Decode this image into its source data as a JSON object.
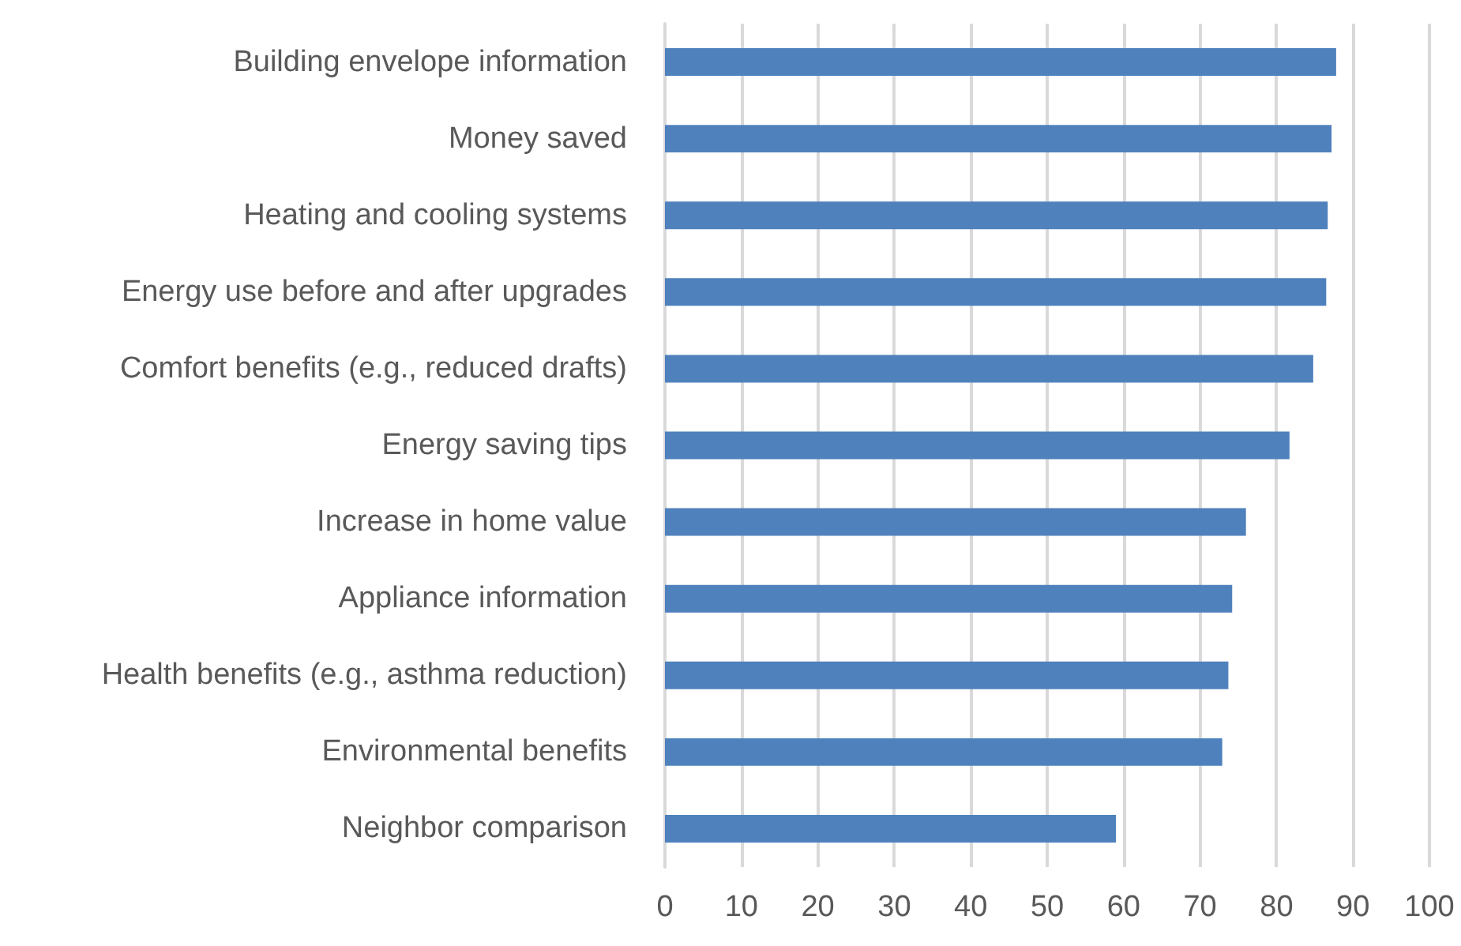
{
  "chart_data": {
    "type": "bar",
    "orientation": "horizontal",
    "categories": [
      "Building envelope information",
      "Money saved",
      "Heating and cooling systems",
      "Energy use before and after upgrades",
      "Comfort benefits (e.g., reduced drafts)",
      "Energy saving tips",
      "Increase in home value",
      "Appliance information",
      "Health benefits (e.g., asthma reduction)",
      "Environmental benefits",
      "Neighbor comparison"
    ],
    "values": [
      87.8,
      87.2,
      86.7,
      86.5,
      84.8,
      81.7,
      76.0,
      74.2,
      73.7,
      72.9,
      59.0
    ],
    "color": "#4f81bd",
    "xlim": [
      0,
      100
    ],
    "xticks": [
      0,
      10,
      20,
      30,
      40,
      50,
      60,
      70,
      80,
      90,
      100
    ],
    "grid": "x"
  }
}
